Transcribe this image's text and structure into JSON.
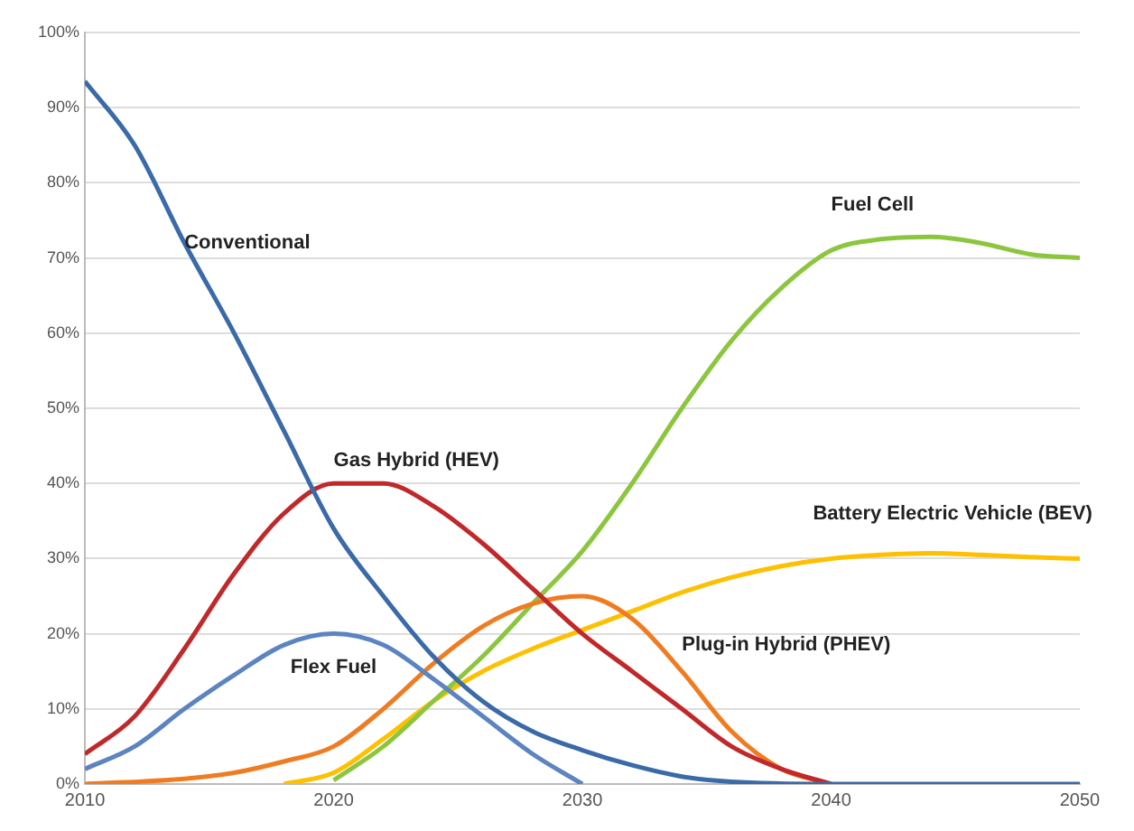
{
  "chart_data": {
    "type": "line",
    "legend": false,
    "grid": "y",
    "marker": "none",
    "line_style": "solid",
    "xlim": [
      2010,
      2050
    ],
    "xticks": [
      2010,
      2020,
      2030,
      2040,
      2050
    ],
    "ylim": [
      0,
      100
    ],
    "yticks": [
      {
        "value": 0,
        "label": "0%"
      },
      {
        "value": 10,
        "label": "10%"
      },
      {
        "value": 20,
        "label": "20%"
      },
      {
        "value": 30,
        "label": "30%"
      },
      {
        "value": 40,
        "label": "40%"
      },
      {
        "value": 50,
        "label": "50%"
      },
      {
        "value": 60,
        "label": "60%"
      },
      {
        "value": 70,
        "label": "70%"
      },
      {
        "value": 80,
        "label": "80%"
      },
      {
        "value": 90,
        "label": "90%"
      },
      {
        "value": 100,
        "label": "100%"
      }
    ],
    "series": [
      {
        "name": "Conventional",
        "color": "#3a6aa8",
        "x": [
          2010,
          2012,
          2014,
          2016,
          2018,
          2020,
          2022,
          2024,
          2026,
          2028,
          2030,
          2032,
          2034,
          2036,
          2040,
          2050
        ],
        "values": [
          93.5,
          85,
          72,
          60,
          47,
          34,
          25,
          17,
          11,
          7,
          4.5,
          2.5,
          1,
          0.3,
          0,
          0
        ]
      },
      {
        "name": "Gas Hybrid (HEV)",
        "color": "#c0282a",
        "x": [
          2010,
          2012,
          2014,
          2016,
          2018,
          2020,
          2022,
          2024,
          2026,
          2028,
          2030,
          2032,
          2034,
          2036,
          2038,
          2040
        ],
        "values": [
          4,
          9,
          18,
          28,
          36,
          40,
          40,
          37,
          32,
          26,
          20,
          15,
          10,
          5,
          2,
          0
        ]
      },
      {
        "name": "Flex Fuel",
        "color": "#5b84c0",
        "x": [
          2010,
          2012,
          2014,
          2016,
          2018,
          2020,
          2022,
          2024,
          2026,
          2028,
          2030
        ],
        "values": [
          2,
          5,
          10,
          14.5,
          18.5,
          20,
          18.5,
          14,
          9,
          4,
          0
        ]
      },
      {
        "name": "Plug-in Hybrid (PHEV)",
        "color": "#f07c22",
        "x": [
          2010,
          2014,
          2016,
          2018,
          2020,
          2022,
          2024,
          2026,
          2028,
          2030,
          2032,
          2034,
          2036,
          2038,
          2040
        ],
        "values": [
          0,
          0.7,
          1.5,
          3,
          5,
          10,
          16,
          21,
          24,
          25,
          22,
          15,
          7,
          2,
          0
        ]
      },
      {
        "name": "Fuel Cell",
        "color": "#8cc63f",
        "x": [
          2020,
          2022,
          2024,
          2026,
          2028,
          2030,
          2032,
          2034,
          2036,
          2038,
          2040,
          2042,
          2044,
          2046,
          2048,
          2050
        ],
        "values": [
          0.5,
          5,
          11,
          17,
          24,
          31,
          40,
          50,
          59,
          66,
          71,
          72.5,
          72.8,
          72,
          70.5,
          70
        ]
      },
      {
        "name": "Battery Electric Vehicle (BEV)",
        "color": "#ffc000",
        "x": [
          2018,
          2020,
          2022,
          2024,
          2026,
          2028,
          2030,
          2032,
          2034,
          2036,
          2038,
          2040,
          2042,
          2044,
          2046,
          2048,
          2050
        ],
        "values": [
          0,
          1.5,
          6,
          11,
          15,
          18,
          20.5,
          23,
          25.5,
          27.5,
          29,
          30,
          30.5,
          30.7,
          30.5,
          30.2,
          30
        ]
      }
    ]
  }
}
